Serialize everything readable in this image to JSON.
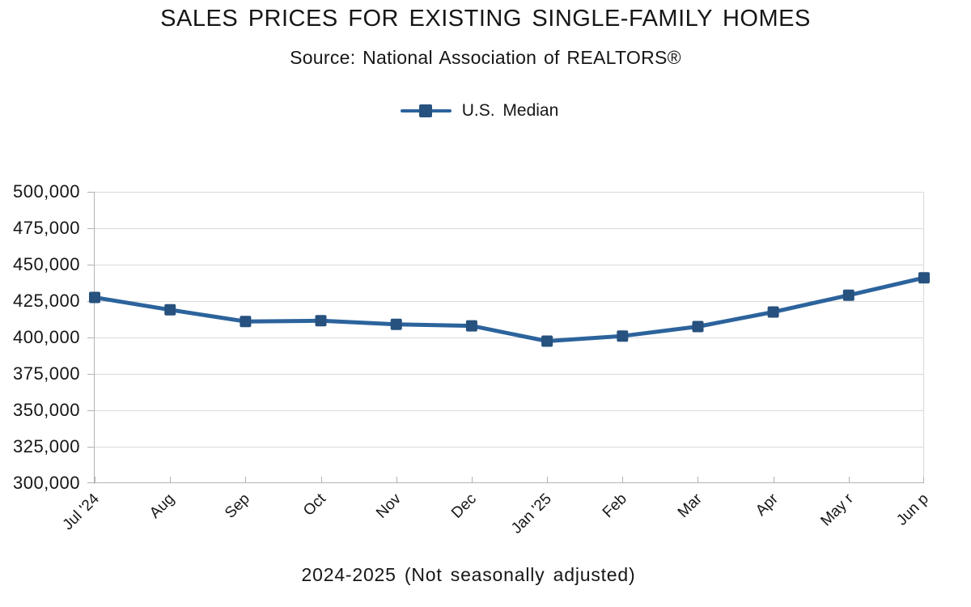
{
  "chart_data": {
    "type": "line",
    "title": "SALES PRICES FOR EXISTING SINGLE-FAMILY HOMES",
    "subtitle": "Source: National Association of REALTORS®",
    "xlabel": "2024-2025 (Not seasonally adjusted)",
    "categories": [
      "Jul '24",
      "Aug",
      "Sep",
      "Oct",
      "Nov",
      "Dec",
      "Jan '25",
      "Feb",
      "Mar",
      "Apr",
      "May r",
      "Jun p"
    ],
    "series": [
      {
        "name": "U.S. Median",
        "values": [
          427500,
          419000,
          411000,
          411500,
          409000,
          408000,
          397500,
          401000,
          407500,
          417500,
          429000,
          441000
        ],
        "line_color": "#2c639c",
        "marker_color": "#27517e",
        "marker_shape": "square"
      }
    ],
    "ylim": [
      300000,
      500000
    ],
    "ytick_interval": 25000,
    "ytick_labels": [
      "500,000",
      "475,000",
      "450,000",
      "425,000",
      "400,000",
      "375,000",
      "350,000",
      "325,000",
      "300,000"
    ],
    "x_tick_rotation_deg": -45,
    "grid": true,
    "legend_position": "top",
    "colors": {
      "gridline": "#d9d9d9",
      "axis": "#b3b3b3",
      "text": "#161616",
      "background": "#ffffff"
    }
  }
}
